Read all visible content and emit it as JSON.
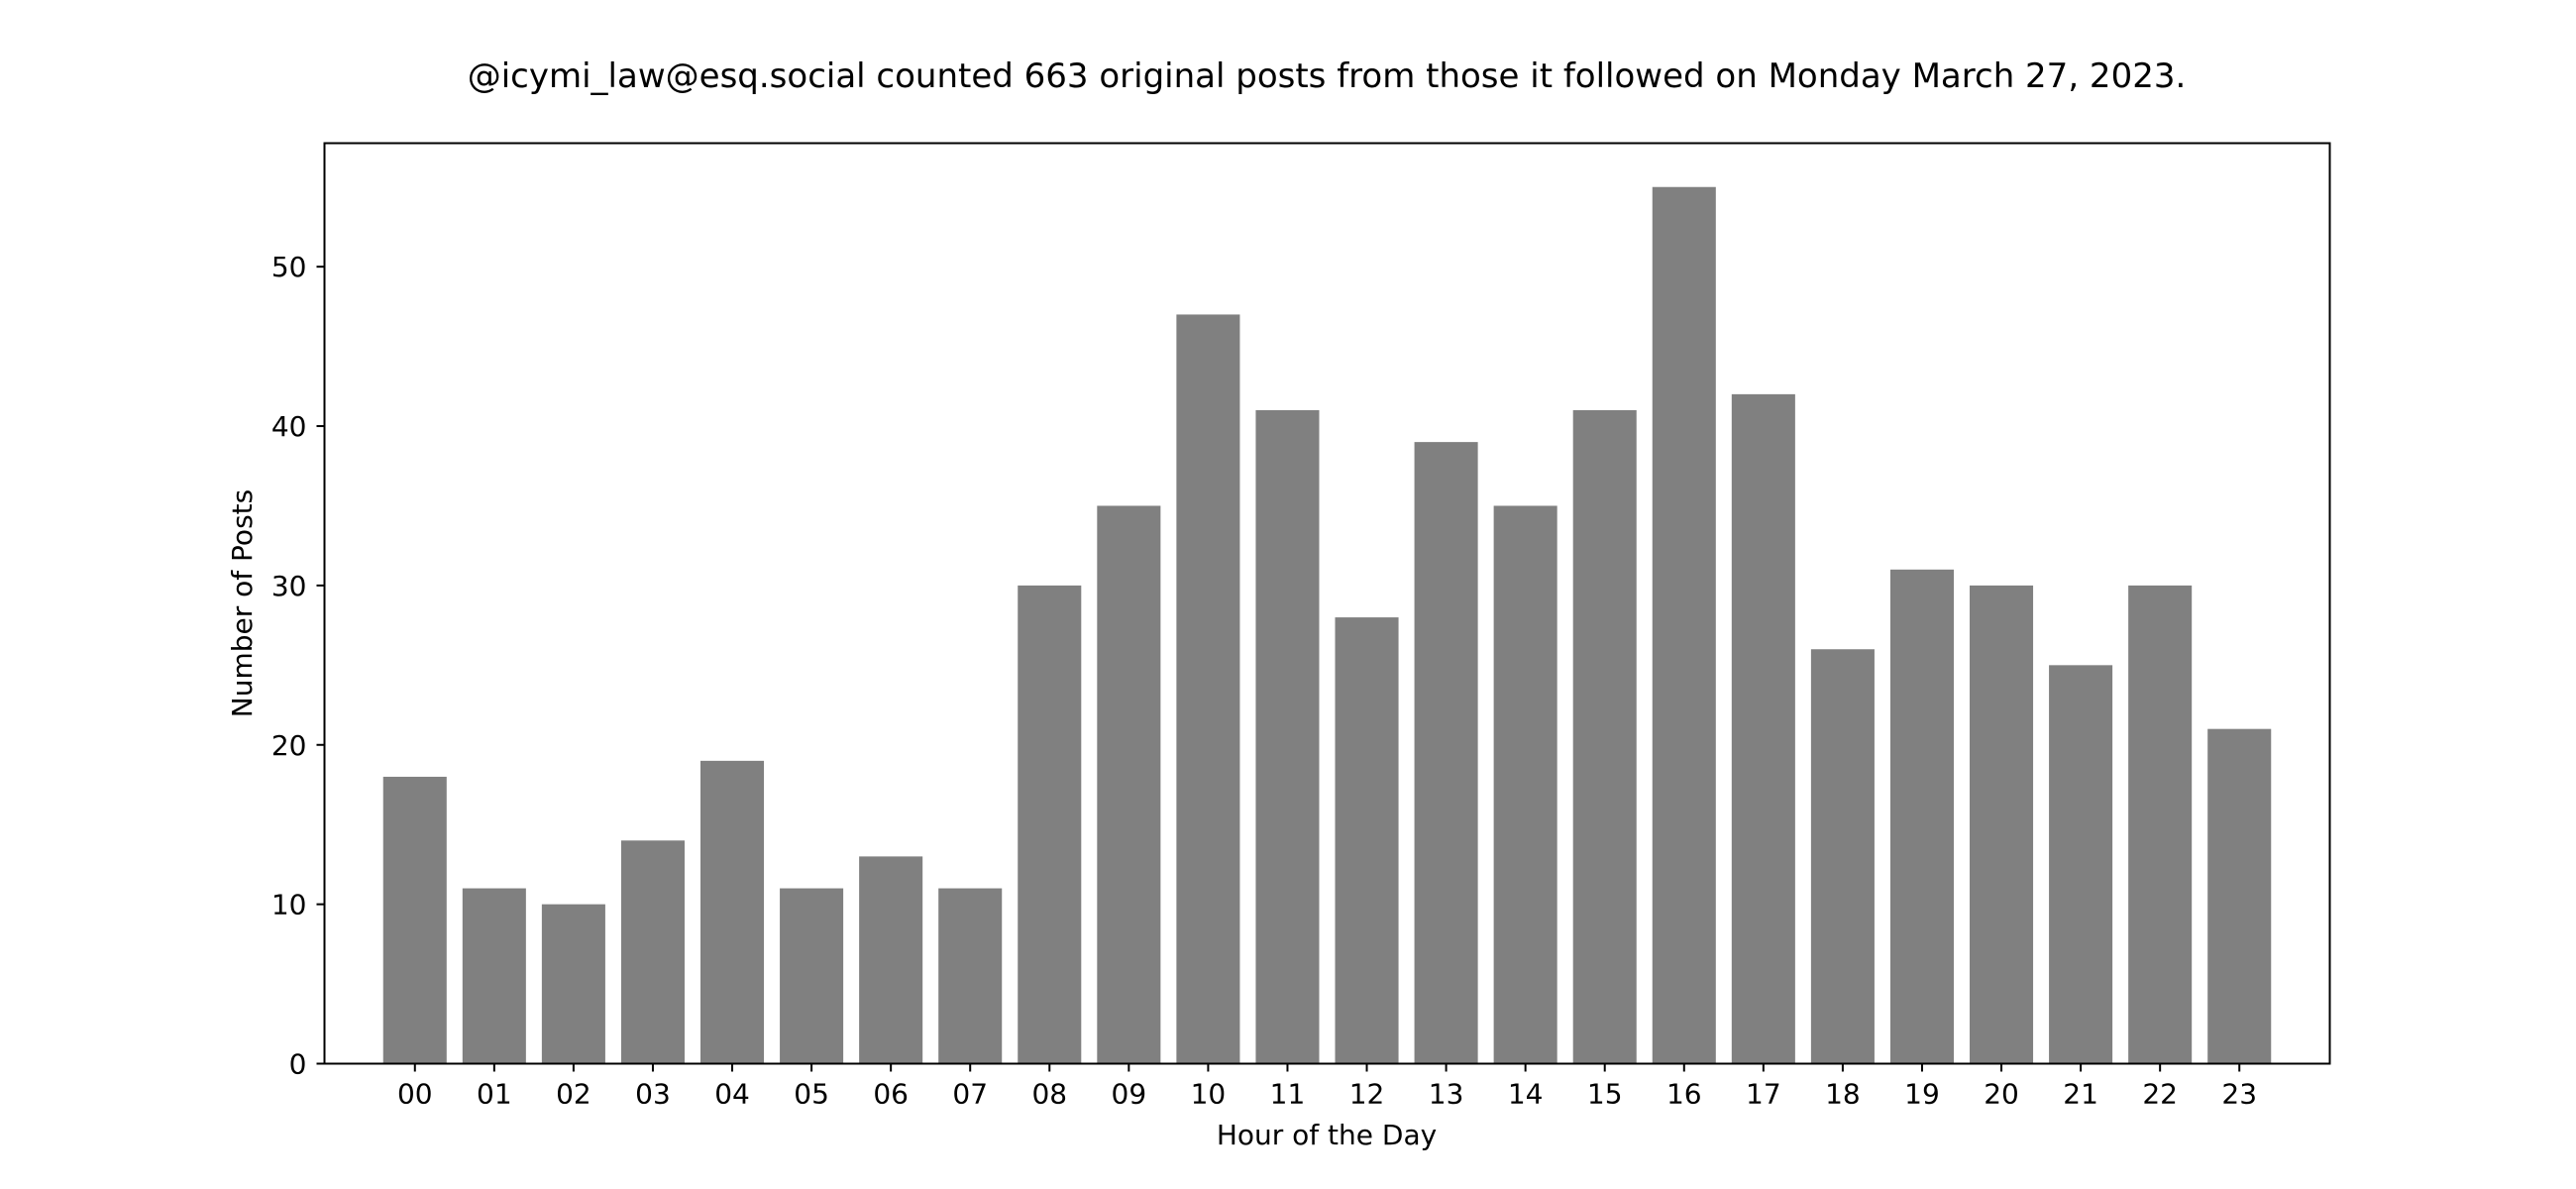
{
  "chart_data": {
    "type": "bar",
    "title": "@icymi_law@esq.social counted 663 original posts from those it followed on Monday March 27, 2023.",
    "xlabel": "Hour of the Day",
    "ylabel": "Number of Posts",
    "categories": [
      "00",
      "01",
      "02",
      "03",
      "04",
      "05",
      "06",
      "07",
      "08",
      "09",
      "10",
      "11",
      "12",
      "13",
      "14",
      "15",
      "16",
      "17",
      "18",
      "19",
      "20",
      "21",
      "22",
      "23"
    ],
    "values": [
      18,
      11,
      10,
      14,
      19,
      11,
      13,
      11,
      30,
      35,
      47,
      41,
      28,
      39,
      35,
      41,
      55,
      42,
      26,
      31,
      30,
      25,
      30,
      21
    ],
    "ylim": [
      0,
      57.75
    ],
    "yticks": [
      0,
      10,
      20,
      30,
      40,
      50
    ],
    "bar_color": "#808080",
    "grid": false,
    "legend": "none"
  }
}
